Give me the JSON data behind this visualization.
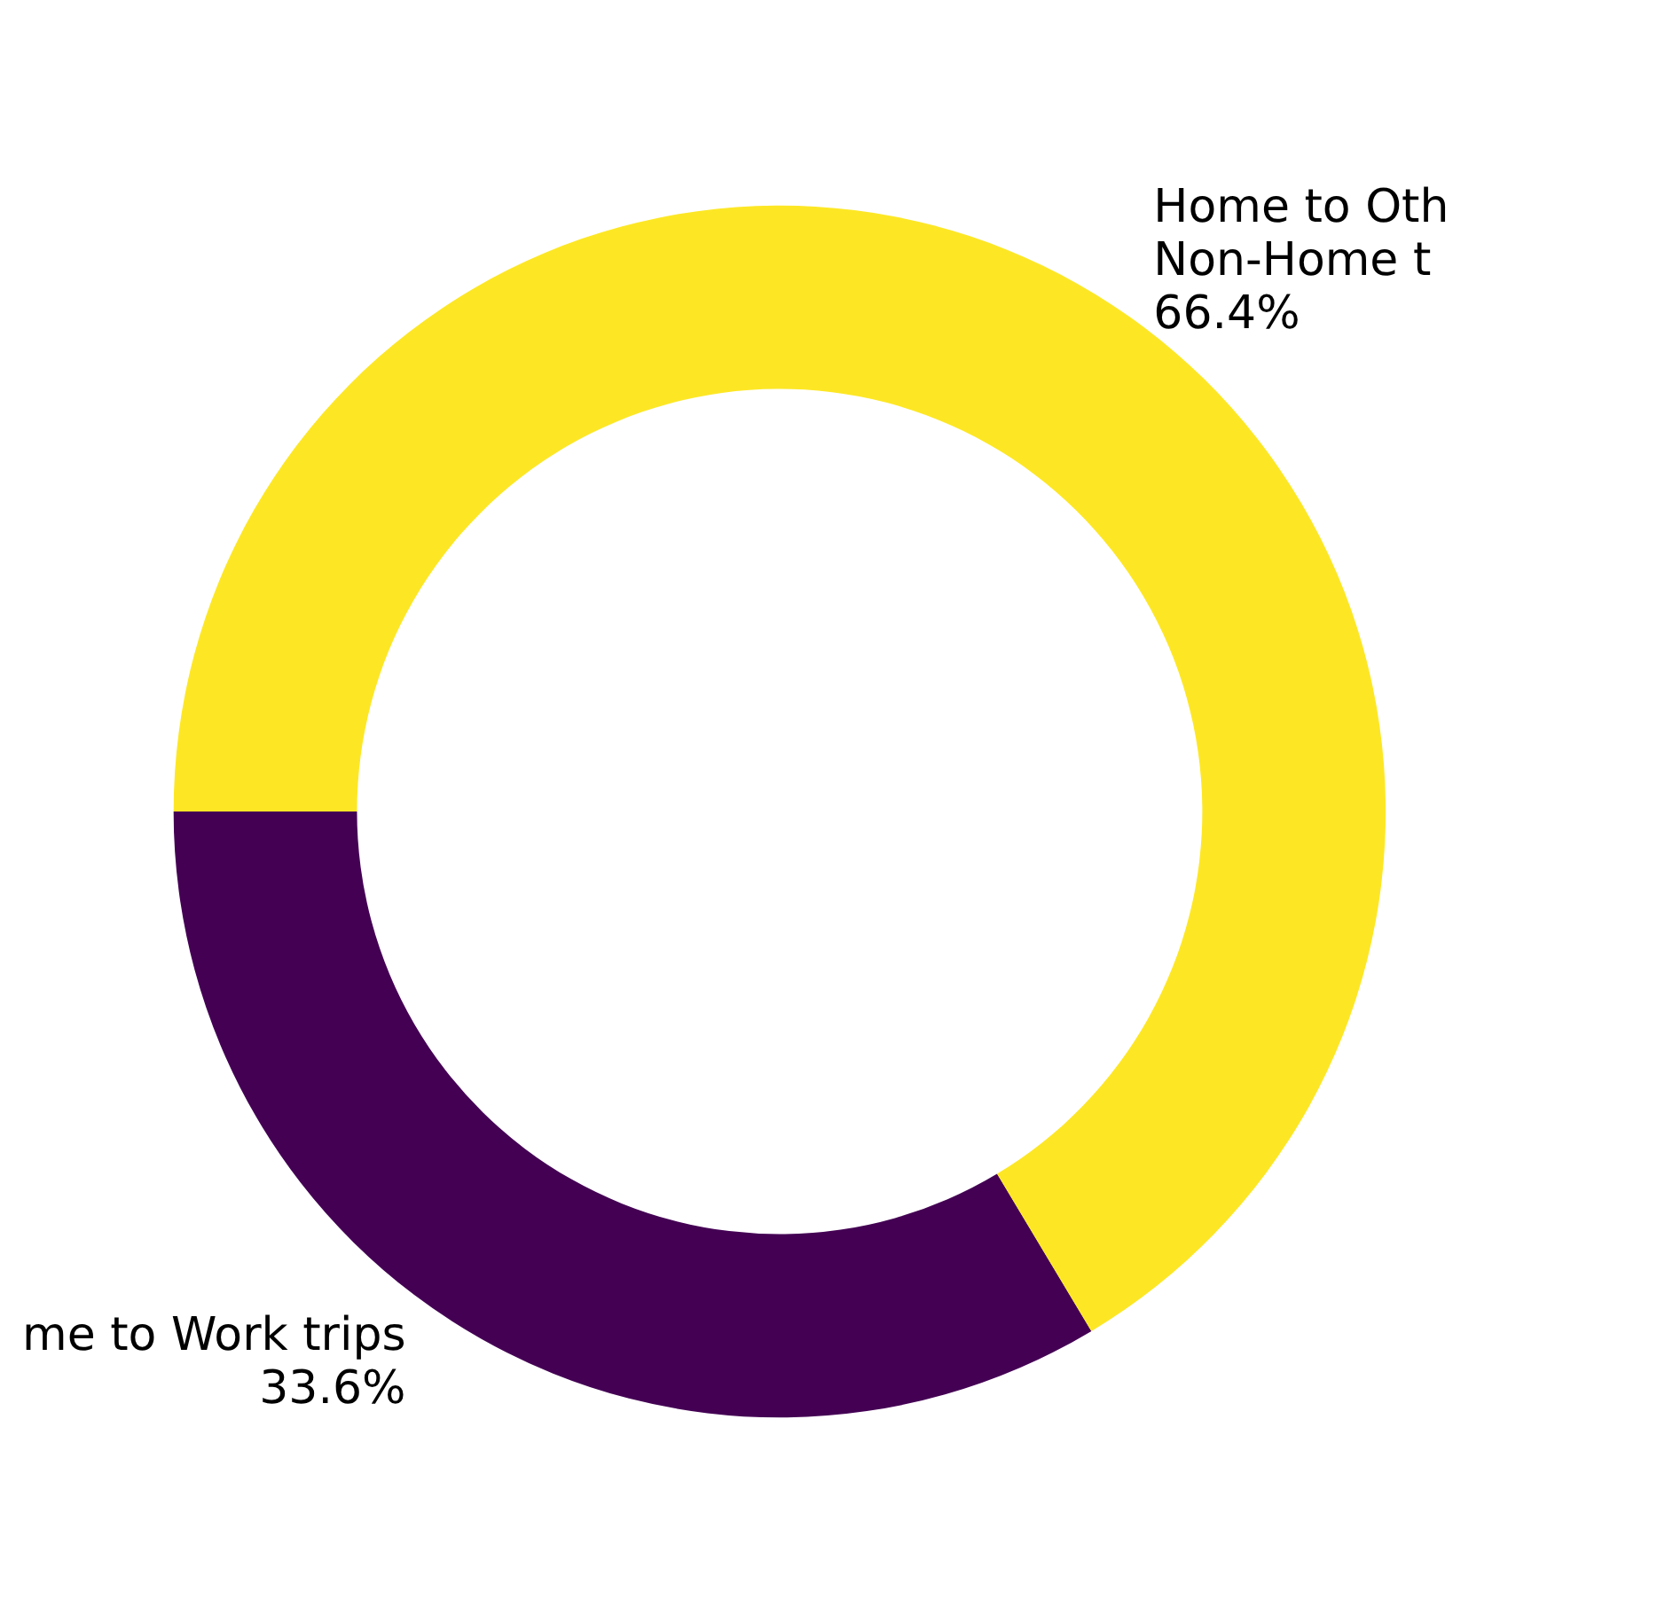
{
  "chart_data": {
    "type": "donut",
    "categories": [
      "me to Work trips",
      "Home to Oth\nNon-Home t"
    ],
    "values": [
      33.6,
      66.4
    ],
    "colors": [
      "#440154",
      "#fde725"
    ],
    "value_labels": [
      "33.6%",
      "66.4%"
    ],
    "legend": false
  }
}
